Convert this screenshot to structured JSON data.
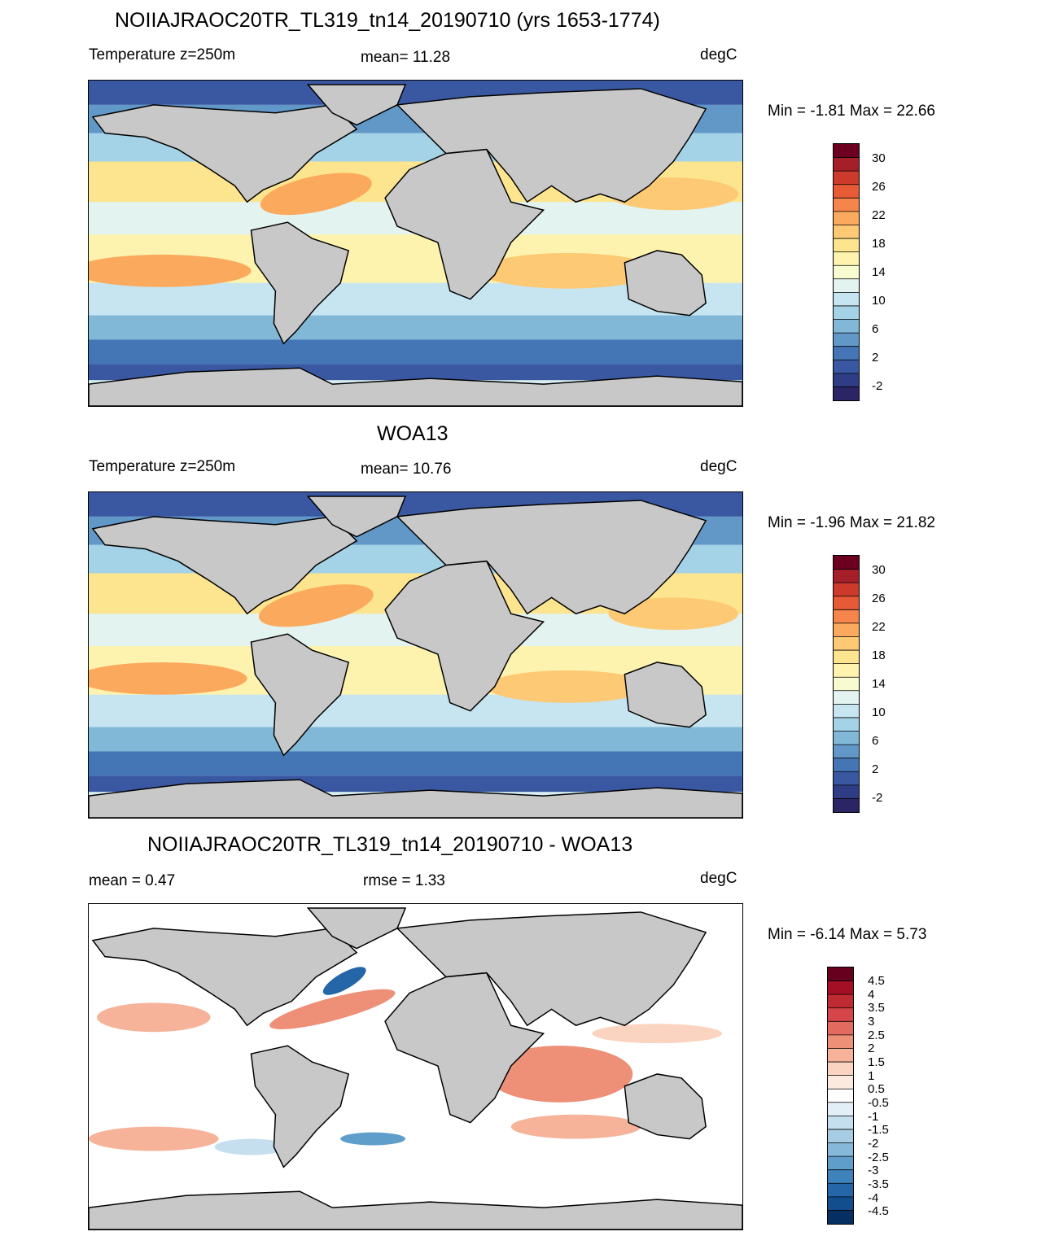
{
  "panels": [
    {
      "title": "NOIIAJRAOC20TR_TL319_tn14_20190710 (yrs 1653-1774)",
      "left_label": "Temperature z=250m",
      "center_label": "mean=  11.28",
      "units": "degC",
      "minmax": "Min =  -1.81 Max =  22.66",
      "colorbar": {
        "colors": [
          "#6d0021",
          "#a51f28",
          "#cc3a2c",
          "#e65a35",
          "#f5854a",
          "#fba95d",
          "#fdc974",
          "#fde48e",
          "#fef3ae",
          "#f8fad0",
          "#e3f3ef",
          "#c6e5f0",
          "#a4d2e6",
          "#82b8d7",
          "#6198c8",
          "#4476b6",
          "#3a58a2",
          "#2f3d86",
          "#2b2465"
        ],
        "ticks": [
          "30",
          "26",
          "22",
          "18",
          "14",
          "10",
          "6",
          "2",
          "-2"
        ]
      }
    },
    {
      "title": "WOA13",
      "left_label": "Temperature z=250m",
      "center_label": "mean=  10.76",
      "units": "degC",
      "minmax": "Min =  -1.96 Max =  21.82",
      "colorbar": {
        "colors": [
          "#6d0021",
          "#a51f28",
          "#cc3a2c",
          "#e65a35",
          "#f5854a",
          "#fba95d",
          "#fdc974",
          "#fde48e",
          "#fef3ae",
          "#f8fad0",
          "#e3f3ef",
          "#c6e5f0",
          "#a4d2e6",
          "#82b8d7",
          "#6198c8",
          "#4476b6",
          "#3a58a2",
          "#2f3d86",
          "#2b2465"
        ],
        "ticks": [
          "30",
          "26",
          "22",
          "18",
          "14",
          "10",
          "6",
          "2",
          "-2"
        ]
      }
    },
    {
      "title": "NOIIAJRAOC20TR_TL319_tn14_20190710 - WOA13",
      "left_label": "mean =   0.47",
      "center_label": "rmse =   1.33",
      "units": "degC",
      "minmax": "Min =  -6.14 Max =   5.73",
      "colorbar": {
        "colors": [
          "#67001f",
          "#a50f26",
          "#c02a33",
          "#d6454a",
          "#e36a5e",
          "#ee8f78",
          "#f6b39a",
          "#fad4c1",
          "#fdeadf",
          "#ffffff",
          "#e3eff6",
          "#c6dfee",
          "#a7cde4",
          "#85b8d9",
          "#5f9ecb",
          "#3e83bb",
          "#2566a8",
          "#124d8e",
          "#053061"
        ],
        "ticks": [
          "4.5",
          "4",
          "3.5",
          "3",
          "2.5",
          "2",
          "1.5",
          "1",
          "0.5",
          "-0.5",
          "-1",
          "-1.5",
          "-2",
          "-2.5",
          "-3",
          "-3.5",
          "-4",
          "-4.5"
        ]
      }
    }
  ],
  "land_color": "#c8c8c8"
}
